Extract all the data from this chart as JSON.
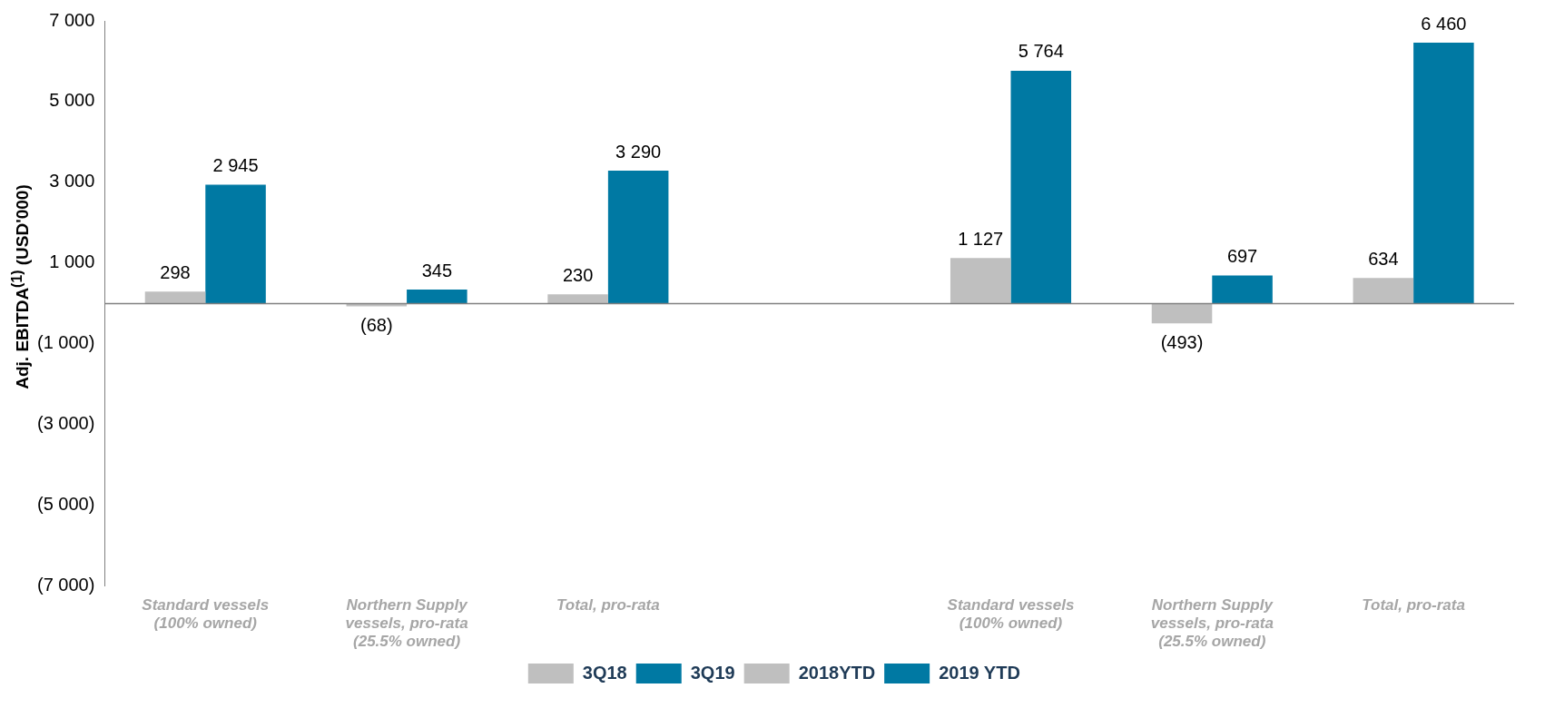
{
  "chart_data": {
    "type": "bar",
    "ylabel": "Adj. EBITDA$^{(1)}$ (USD'000)",
    "categories": [
      "Standard vessels (100% owned)",
      "Northern Supply vessels, pro-rata (25.5% owned)",
      "Total, pro-rata",
      null,
      "Standard vessels (100% owned)",
      "Northern Supply vessels, pro-rata (25.5% owned)",
      "Total, pro-rata"
    ],
    "series": [
      {
        "name": "3Q18",
        "color": "#bfbfbf",
        "values": [
          298,
          -68,
          230,
          null,
          null,
          null,
          null
        ],
        "value_labels": [
          "298",
          "(68)",
          "230",
          null,
          null,
          null,
          null
        ]
      },
      {
        "name": "3Q19",
        "color": "#0079a3",
        "values": [
          2945,
          345,
          3290,
          null,
          null,
          null,
          null
        ],
        "value_labels": [
          "2 945",
          "345",
          "3 290",
          null,
          null,
          null,
          null
        ]
      },
      {
        "name": "2018YTD",
        "color": "#bfbfbf",
        "values": [
          null,
          null,
          null,
          null,
          1127,
          -493,
          634
        ],
        "value_labels": [
          null,
          null,
          null,
          null,
          "1 127",
          "(493)",
          "634"
        ]
      },
      {
        "name": "2019 YTD",
        "color": "#0079a3",
        "values": [
          null,
          null,
          null,
          null,
          5764,
          697,
          6460
        ],
        "value_labels": [
          null,
          null,
          null,
          null,
          "5 764",
          "697",
          "6 460"
        ]
      }
    ],
    "ylim": [
      -7000,
      7000
    ],
    "yticks": [
      {
        "value": 7000,
        "label": "7 000"
      },
      {
        "value": 5000,
        "label": "5 000"
      },
      {
        "value": 3000,
        "label": "3 000"
      },
      {
        "value": 1000,
        "label": "1 000"
      },
      {
        "value": -1000,
        "label": "(1 000)"
      },
      {
        "value": -3000,
        "label": "(3 000)"
      },
      {
        "value": -5000,
        "label": "(5 000)"
      },
      {
        "value": -7000,
        "label": "(7 000)"
      }
    ],
    "grid": false,
    "legend": "bottom"
  }
}
